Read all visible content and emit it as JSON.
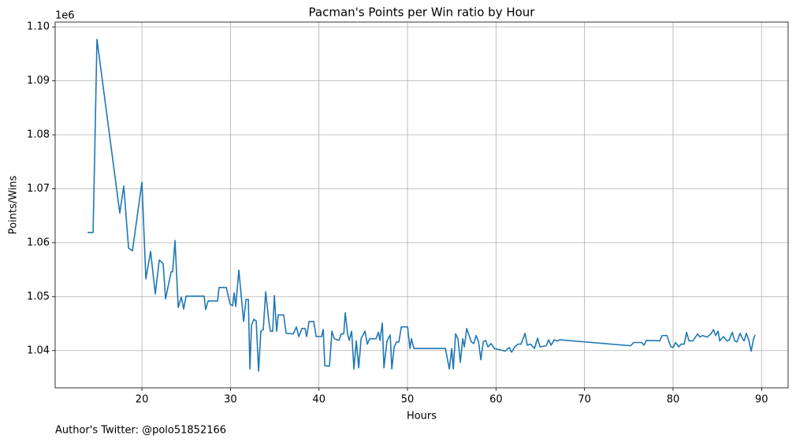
{
  "chart_data": {
    "type": "line",
    "title": "Pacman's Points per Win ratio by Hour",
    "x_label": "Hours",
    "y_label": "Points/Wins",
    "y_offset_label": "1e6",
    "footnote": "Author's Twitter: @polo51852166",
    "color": "#1f77b4",
    "grid": true,
    "xlim": [
      10.2,
      93.0
    ],
    "ylim": [
      1.0331,
      1.1009
    ],
    "xticks": [
      20,
      30,
      40,
      50,
      60,
      70,
      80,
      90
    ],
    "yticks": [
      1.04,
      1.05,
      1.06,
      1.07,
      1.08,
      1.09,
      {
        "value": 1.1,
        "label": "1.10"
      }
    ],
    "x": [
      13.86,
      14.48,
      14.66,
      14.92,
      17.5,
      17.95,
      18.49,
      18.93,
      20,
      20.45,
      20.98,
      21.51,
      21.96,
      22.4,
      22.67,
      23.3,
      23.47,
      23.74,
      24.1,
      24.45,
      24.72,
      24.99,
      27.03,
      27.2,
      27.48,
      28.55,
      28.72,
      29.53,
      29.97,
      30.24,
      30.42,
      30.6,
      30.95,
      31.49,
      31.76,
      32.02,
      32.2,
      32.38,
      32.64,
      32.91,
      33.18,
      33.44,
      33.71,
      33.98,
      34.34,
      34.51,
      34.78,
      34.96,
      35.22,
      35.4,
      36.02,
      36.29,
      37.1,
      37.45,
      37.72,
      38.08,
      38.43,
      38.61,
      38.88,
      39.41,
      39.68,
      40.3,
      40.48,
      40.66,
      41.19,
      41.46,
      41.73,
      42.26,
      42.53,
      42.8,
      42.97,
      43.24,
      43.42,
      43.69,
      43.95,
      44.22,
      44.49,
      44.76,
      45.2,
      45.47,
      45.73,
      46.45,
      46.71,
      46.89,
      47.16,
      47.34,
      47.69,
      48.05,
      48.23,
      48.5,
      48.77,
      49.03,
      49.3,
      50.01,
      50.28,
      50.45,
      50.72,
      54.28,
      54.73,
      55.0,
      55.17,
      55.44,
      55.71,
      55.97,
      56.24,
      56.42,
      56.69,
      57.22,
      57.49,
      57.76,
      58.03,
      58.29,
      58.56,
      58.83,
      59.09,
      59.45,
      59.8,
      61.05,
      61.5,
      61.76,
      62.12,
      62.48,
      62.83,
      63.28,
      63.54,
      63.9,
      64.35,
      64.7,
      64.97,
      65.68,
      65.95,
      66.22,
      66.57,
      66.93,
      67.2,
      75.21,
      75.57,
      76.46,
      76.72,
      76.99,
      78.5,
      78.77,
      79.3,
      79.75,
      80.02,
      80.28,
      80.64,
      80.91,
      81.26,
      81.53,
      81.8,
      82.24,
      82.78,
      83.04,
      83.31,
      83.84,
      84.29,
      84.56,
      84.82,
      85.09,
      85.27,
      85.71,
      86.07,
      86.33,
      86.69,
      86.96,
      87.22,
      87.58,
      87.85,
      88.03,
      88.29,
      88.56,
      88.83,
      89.1,
      89.27
    ],
    "values": [
      1.0619,
      1.0619,
      1.0758,
      1.0977,
      1.0655,
      1.0705,
      1.059,
      1.0585,
      1.0712,
      1.0533,
      1.0584,
      1.0505,
      1.0568,
      1.0561,
      1.0496,
      1.0546,
      1.0546,
      1.0604,
      1.048,
      1.0499,
      1.0477,
      1.0501,
      1.0501,
      1.0476,
      1.0492,
      1.0492,
      1.0517,
      1.0517,
      1.0486,
      1.0483,
      1.0507,
      1.0482,
      1.0549,
      1.0454,
      1.0495,
      1.0495,
      1.0366,
      1.0447,
      1.0458,
      1.0455,
      1.0362,
      1.0436,
      1.0439,
      1.0509,
      1.0454,
      1.0436,
      1.0436,
      1.0502,
      1.0436,
      1.0466,
      1.0466,
      1.0432,
      1.0431,
      1.0444,
      1.0426,
      1.0441,
      1.0441,
      1.0426,
      1.0454,
      1.0454,
      1.0426,
      1.0426,
      1.0439,
      1.0372,
      1.0371,
      1.0436,
      1.0422,
      1.0419,
      1.0431,
      1.0431,
      1.047,
      1.0431,
      1.0419,
      1.0436,
      1.0366,
      1.0418,
      1.0368,
      1.0422,
      1.0436,
      1.0412,
      1.0422,
      1.0422,
      1.0434,
      1.0419,
      1.0451,
      1.0368,
      1.0418,
      1.0429,
      1.0366,
      1.0407,
      1.0416,
      1.0416,
      1.0444,
      1.0444,
      1.0404,
      1.0422,
      1.0404,
      1.0404,
      1.0366,
      1.0404,
      1.0366,
      1.0431,
      1.0422,
      1.0378,
      1.0422,
      1.0407,
      1.0441,
      1.0416,
      1.0413,
      1.0428,
      1.0416,
      1.0383,
      1.0416,
      1.0419,
      1.0407,
      1.0413,
      1.0404,
      1.0399,
      1.0406,
      1.0397,
      1.0407,
      1.0412,
      1.0412,
      1.0432,
      1.041,
      1.0412,
      1.0404,
      1.0423,
      1.0407,
      1.0409,
      1.042,
      1.041,
      1.042,
      1.0418,
      1.042,
      1.0409,
      1.0415,
      1.0415,
      1.041,
      1.0419,
      1.0418,
      1.0428,
      1.0428,
      1.0407,
      1.0406,
      1.0415,
      1.0407,
      1.0412,
      1.0412,
      1.0434,
      1.0418,
      1.0418,
      1.0431,
      1.0425,
      1.0428,
      1.0425,
      1.0431,
      1.0439,
      1.0428,
      1.0436,
      1.0418,
      1.0426,
      1.0418,
      1.0419,
      1.0434,
      1.0418,
      1.0416,
      1.0432,
      1.0422,
      1.0418,
      1.0432,
      1.0419,
      1.0399,
      1.0422,
      1.0429
    ]
  }
}
